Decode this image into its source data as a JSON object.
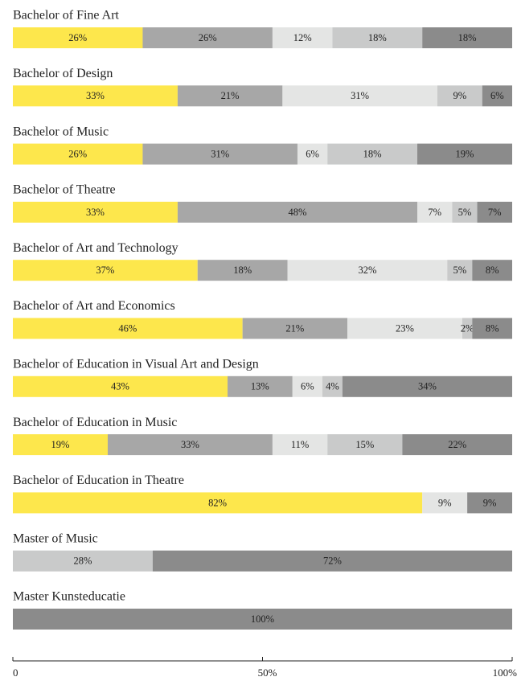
{
  "chart_data": {
    "type": "stacked-barh",
    "categories": [
      "Bachelor of Fine Art",
      "Bachelor of Design",
      "Bachelor of Music",
      "Bachelor of Theatre",
      "Bachelor of Art and Technology",
      "Bachelor of Art and Economics",
      "Bachelor of Education in Visual Art and Design",
      "Bachelor of Education in Music",
      "Bachelor of Education in Theatre",
      "Master of Music",
      "Master Kunsteducatie"
    ],
    "series": [
      {
        "color": "#fde74c",
        "values": [
          26,
          33,
          26,
          33,
          37,
          46,
          43,
          19,
          82,
          null,
          null
        ],
        "value_labels": [
          "26%",
          "33%",
          "26%",
          "33%",
          "37%",
          "46%",
          "43%",
          "19%",
          "82%",
          null,
          null
        ]
      },
      {
        "color": "#a7a7a7",
        "values": [
          26,
          21,
          31,
          48,
          18,
          21,
          13,
          33,
          null,
          null,
          null
        ],
        "value_labels": [
          "26%",
          "21%",
          "31%",
          "48%",
          "18%",
          "21%",
          "13%",
          "33%",
          null,
          null,
          null
        ]
      },
      {
        "color": "#e4e5e4",
        "values": [
          12,
          31,
          6,
          7,
          32,
          23,
          6,
          11,
          9,
          null,
          null
        ],
        "value_labels": [
          "12%",
          "31%",
          "6%",
          "7%",
          "32%",
          "23%",
          "6%",
          "11%",
          "9%",
          null,
          null
        ]
      },
      {
        "color": "#c9caca",
        "values": [
          18,
          9,
          18,
          5,
          5,
          2,
          4,
          15,
          null,
          28,
          null
        ],
        "value_labels": [
          "18%",
          "9%",
          "18%",
          "5%",
          "5%",
          "2%",
          "4%",
          "15%",
          null,
          "28%",
          null
        ]
      },
      {
        "color": "#8b8b8b",
        "values": [
          18,
          6,
          19,
          7,
          8,
          8,
          34,
          22,
          9,
          72,
          100
        ],
        "value_labels": [
          "18%",
          "6%",
          "19%",
          "7%",
          "8%",
          "8%",
          "34%",
          "22%",
          "9%",
          "72%",
          "100%"
        ]
      }
    ],
    "xlim": [
      0,
      100
    ],
    "xticks": [
      0,
      {
        "value": 50,
        "label": "50%"
      },
      {
        "value": 100,
        "label": "100%"
      }
    ]
  }
}
